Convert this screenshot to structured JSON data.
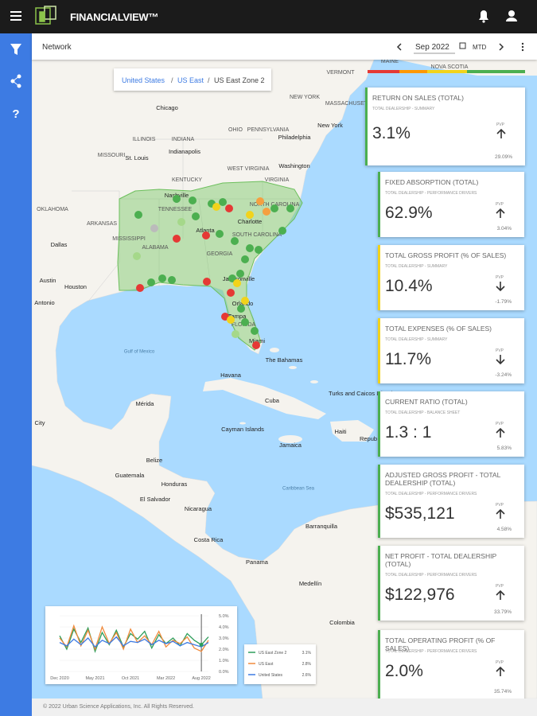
{
  "header": {
    "brand": "FINANCIALVIEW™"
  },
  "toolbar": {
    "page": "Network",
    "period": "Sep 2022",
    "mode": "MTD"
  },
  "breadcrumb": {
    "items": [
      "United States",
      "US East",
      "US East Zone 2"
    ],
    "separator": "/"
  },
  "map_labels": [
    "MAINE",
    "NOVA SCOTIA",
    "VERMONT",
    "NEW YORK",
    "MASSACHUSETTS",
    "Chicago",
    "ILLINOIS",
    "INDIANA",
    "OHIO",
    "PENNSYLVANIA",
    "Philadelphia",
    "New York",
    "Indianapolis",
    "St. Louis",
    "MISSOURI",
    "Washington",
    "WEST VIRGINIA",
    "KENTUCKY",
    "VIRGINIA",
    "Nashville",
    "TENNESSEE",
    "NORTH CAROLINA",
    "Charlotte",
    "SOUTH CAROLINA",
    "OKLAHOMA",
    "ARKANSAS",
    "Atlanta",
    "MISSISSIPPI",
    "ALABAMA",
    "GEORGIA",
    "Dallas",
    "Austin",
    "Houston",
    "Antonio",
    "Jacksonville",
    "Orlando",
    "Tampa",
    "FLORIDA",
    "Miami",
    "Gulf of Mexico",
    "The Bahamas",
    "Havana",
    "Cuba",
    "Turks and Caicos Islands",
    "Mérida",
    "City",
    "Cayman Islands",
    "Haiti",
    "Repub",
    "Jamaica",
    "Belize",
    "Guatemala",
    "Honduras",
    "El Salvador",
    "Nicaragua",
    "Caribbean Sea",
    "Costa Rica",
    "Panama",
    "Barranquilla",
    "Medellín",
    "Colombia"
  ],
  "cards": [
    {
      "title": "RETURN ON SALES (TOTAL)",
      "subtitle": "TOTAL DEALERSHIP - SUMMARY",
      "value": "3.1%",
      "pvp_label": "PVP",
      "direction": "up",
      "change": "29.09%",
      "color": "#4caf50"
    },
    {
      "title": "FIXED ABSORPTION (TOTAL)",
      "subtitle": "TOTAL DEALERSHIP - PERFORMANCE DRIVERS",
      "value": "62.9%",
      "pvp_label": "PVP",
      "direction": "up",
      "change": "3.04%",
      "color": "#4caf50"
    },
    {
      "title": "TOTAL GROSS PROFIT (% OF SALES)",
      "subtitle": "TOTAL DEALERSHIP - SUMMARY",
      "value": "10.4%",
      "pvp_label": "PVP",
      "direction": "down",
      "change": "-1.79%",
      "color": "#f2d31b"
    },
    {
      "title": "TOTAL EXPENSES (% OF SALES)",
      "subtitle": "TOTAL DEALERSHIP - SUMMARY",
      "value": "11.7%",
      "pvp_label": "PVP",
      "direction": "down",
      "change": "-3.24%",
      "color": "#f2d31b"
    },
    {
      "title": "CURRENT RATIO (TOTAL)",
      "subtitle": "TOTAL DEALERSHIP - BALANCE SHEET",
      "value": "1.3 : 1",
      "pvp_label": "PVP",
      "direction": "up",
      "change": "5.83%",
      "color": "#4caf50"
    },
    {
      "title": "ADJUSTED GROSS PROFIT - TOTAL DEALERSHIP (TOTAL)",
      "subtitle": "TOTAL DEALERSHIP - PERFORMANCE DRIVERS",
      "value": "$535,121",
      "pvp_label": "PVP",
      "direction": "up",
      "change": "4.58%",
      "color": "#4caf50"
    },
    {
      "title": "NET PROFIT - TOTAL DEALERSHIP (TOTAL)",
      "subtitle": "TOTAL DEALERSHIP - PERFORMANCE DRIVERS",
      "value": "$122,976",
      "pvp_label": "PVP",
      "direction": "up",
      "change": "33.79%",
      "color": "#4caf50"
    },
    {
      "title": "TOTAL OPERATING PROFIT (% OF SALES)",
      "subtitle": "TOTAL DEALERSHIP - PERFORMANCE DRIVERS",
      "value": "2.0%",
      "pvp_label": "PVP",
      "direction": "up",
      "change": "35.74%",
      "color": "#4caf50"
    }
  ],
  "chart_data": {
    "type": "line",
    "categories": [
      "Dec 2020",
      null,
      null,
      null,
      null,
      "May 2021",
      null,
      null,
      null,
      null,
      "Oct 2021",
      null,
      null,
      null,
      null,
      "Mar 2022",
      null,
      null,
      null,
      null,
      "Aug 2022",
      null
    ],
    "series": [
      {
        "name": "US East Zone 2",
        "legend_value": "3.1%",
        "color": "#2e9e5b",
        "values": [
          3.2,
          2.0,
          3.8,
          2.6,
          3.9,
          1.8,
          3.5,
          2.4,
          3.7,
          2.2,
          3.4,
          2.9,
          3.6,
          2.1,
          3.3,
          2.5,
          3.0,
          2.3,
          3.4,
          2.8,
          2.4,
          3.1
        ]
      },
      {
        "name": "US East",
        "legend_value": "2.8%",
        "color": "#f08a3c",
        "values": [
          3.0,
          2.2,
          4.1,
          2.3,
          3.7,
          2.0,
          4.0,
          2.5,
          3.5,
          2.0,
          3.8,
          2.6,
          3.2,
          2.4,
          3.6,
          2.2,
          2.8,
          2.5,
          3.1,
          2.1,
          1.8,
          2.8
        ]
      },
      {
        "name": "United States",
        "legend_value": "2.6%",
        "color": "#3d7be3",
        "values": [
          2.6,
          2.3,
          2.9,
          2.4,
          3.0,
          2.2,
          2.8,
          2.5,
          3.1,
          2.3,
          2.7,
          2.6,
          2.9,
          2.4,
          2.8,
          2.5,
          2.7,
          2.3,
          2.6,
          2.4,
          2.2,
          2.6
        ]
      }
    ],
    "ylim": [
      0,
      5
    ],
    "yticks": [
      {
        "value": 0,
        "label": "0.0%"
      },
      {
        "value": 1,
        "label": "1.0%"
      },
      {
        "value": 2,
        "label": "2.0%"
      },
      {
        "value": 3,
        "label": "3.0%"
      },
      {
        "value": 4,
        "label": "4.0%"
      },
      {
        "value": 5,
        "label": "5.0%"
      }
    ]
  },
  "footer": {
    "text": "© 2022 Urban Science Applications, Inc. All Rights Reserved."
  }
}
